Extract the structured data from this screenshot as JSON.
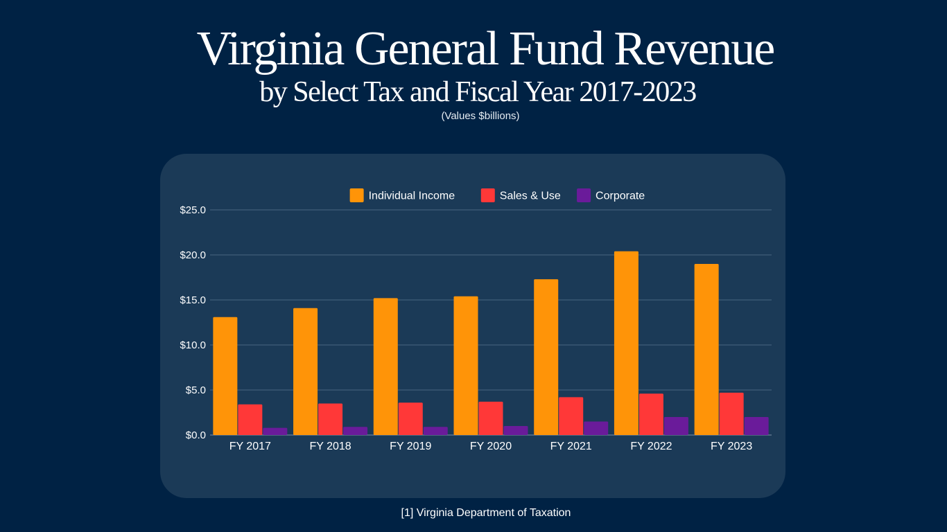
{
  "header": {
    "title": "Virginia General Fund Revenue",
    "subtitle": "by Select Tax and Fiscal Year 2017-2023",
    "units_note": "(Values $billions)"
  },
  "footer": {
    "source": "[1] Virginia Department of Taxation"
  },
  "chart_data": {
    "type": "bar",
    "title": "Virginia General Fund Revenue by Select Tax and Fiscal Year 2017-2023",
    "xlabel": "",
    "ylabel": "",
    "ylim": [
      0,
      25
    ],
    "yticks": [
      0,
      5,
      10,
      15,
      20,
      25
    ],
    "ytick_labels": [
      "$0.0",
      "$5.0",
      "$10.0",
      "$15.0",
      "$20.0",
      "$25.0"
    ],
    "grid": true,
    "legend_position": "top-center",
    "categories": [
      "FY 2017",
      "FY 2018",
      "FY 2019",
      "FY 2020",
      "FY 2021",
      "FY 2022",
      "FY 2023"
    ],
    "series": [
      {
        "name": "Individual Income",
        "color": "#ff9408",
        "values": [
          13.1,
          14.1,
          15.2,
          15.4,
          17.3,
          20.4,
          19.0
        ]
      },
      {
        "name": "Sales & Use",
        "color": "#ff3838",
        "values": [
          3.4,
          3.5,
          3.6,
          3.7,
          4.2,
          4.6,
          4.7
        ]
      },
      {
        "name": "Corporate",
        "color": "#6a1b9a",
        "values": [
          0.8,
          0.9,
          0.9,
          1.0,
          1.5,
          2.0,
          2.0
        ]
      }
    ]
  }
}
